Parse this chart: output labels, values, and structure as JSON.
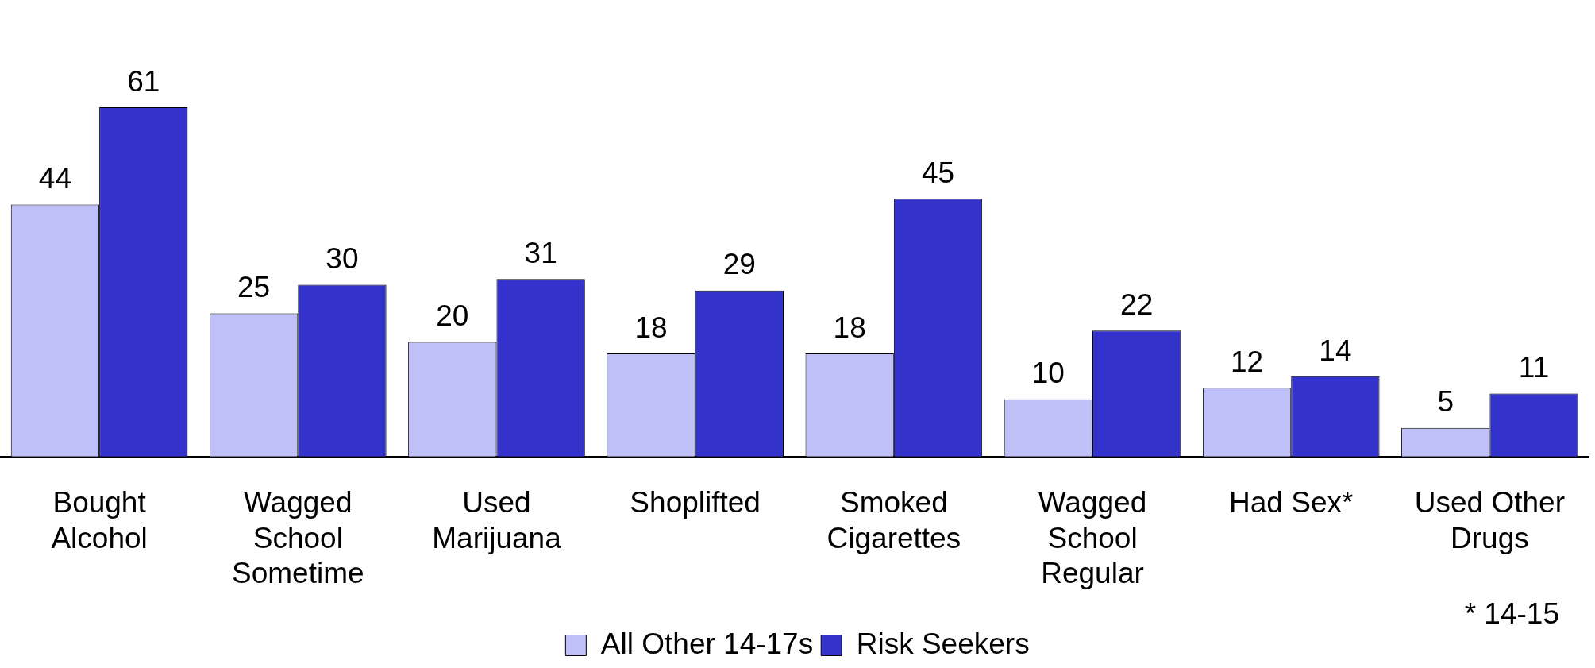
{
  "chart_data": {
    "type": "bar",
    "categories": [
      "Bought Alcohol",
      "Wagged School Sometime",
      "Used Marijuana",
      "Shoplifted",
      "Smoked Cigarettes",
      "Wagged School Regular",
      "Had Sex*",
      "Used Other Drugs"
    ],
    "series": [
      {
        "name": "All Other 14-17s",
        "color": "#c0c0f8",
        "values": [
          44,
          25,
          20,
          18,
          18,
          10,
          12,
          5
        ]
      },
      {
        "name": "Risk Seekers",
        "color": "#3333cc",
        "values": [
          61,
          30,
          31,
          29,
          45,
          22,
          14,
          11
        ]
      }
    ],
    "data_labels": true,
    "grid": false,
    "legend": "bottom",
    "annotations": [
      "* 14-15"
    ]
  }
}
